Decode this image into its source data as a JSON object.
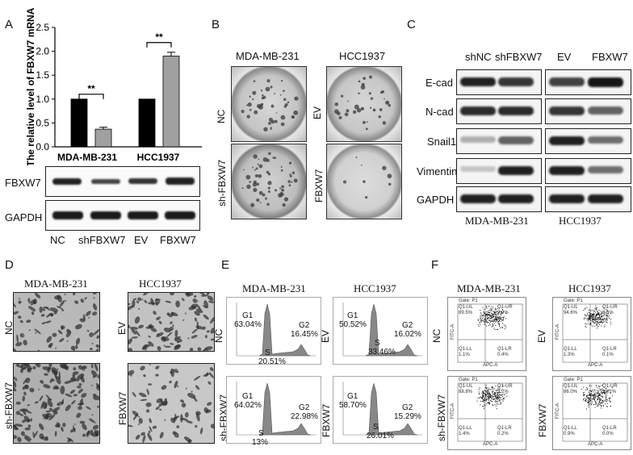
{
  "panels": {
    "A": "A",
    "B": "B",
    "C": "C",
    "D": "D",
    "E": "E",
    "F": "F"
  },
  "panelA": {
    "chart_data": {
      "type": "bar",
      "ylabel": "The relative level of FBXW7 mRNA",
      "ylim": [
        0,
        2.5
      ],
      "yticks": [
        "0.0",
        "0.5",
        "1.0",
        "1.5",
        "2.0",
        "2.5"
      ],
      "groups": [
        "MDA-MB-231",
        "HCC1937"
      ],
      "bars": [
        {
          "group": "MDA-MB-231",
          "color": "#000000",
          "value": 1.0,
          "error": 0
        },
        {
          "group": "MDA-MB-231",
          "color": "#a0a0a0",
          "value": 0.37,
          "error": 0.04
        },
        {
          "group": "HCC1937",
          "color": "#000000",
          "value": 1.0,
          "error": 0
        },
        {
          "group": "HCC1937",
          "color": "#a0a0a0",
          "value": 1.9,
          "error": 0.08
        }
      ],
      "significance": [
        "**",
        "**"
      ]
    },
    "blot_labels": [
      "FBXW7",
      "GAPDH"
    ],
    "lanes": [
      "NC",
      "shFBXW7",
      "EV",
      "FBXW7"
    ]
  },
  "panelB": {
    "cols": [
      "MDA-MB-231",
      "HCC1937"
    ],
    "left_rows": [
      "NC",
      "sh-FBXW7"
    ],
    "right_rows": [
      "EV",
      "FBXW7"
    ]
  },
  "panelC": {
    "left_lanes": [
      "shNC",
      "shFBXW7"
    ],
    "right_lanes": [
      "EV",
      "FBXW7"
    ],
    "proteins": [
      "E-cad",
      "N-cad",
      "Snail1",
      "Vimentin",
      "GAPDH"
    ],
    "cells": [
      "MDA-MB-231",
      "HCC1937"
    ]
  },
  "panelD": {
    "cols": [
      "MDA-MB-231",
      "HCC1937"
    ],
    "left_rows": [
      "NC",
      "sh-FBXW7"
    ],
    "right_rows": [
      "EV",
      "FBXW7"
    ]
  },
  "panelE": {
    "cols": [
      "MDA-MB-231",
      "HCC1937"
    ],
    "left_rows": [
      "NC",
      "sh-FBXW7"
    ],
    "right_rows": [
      "EV",
      "FBXW7"
    ],
    "cells": [
      {
        "g1": "G1",
        "g1v": "63.04%",
        "g2": "G2",
        "g2v": "16.45%",
        "s": "S",
        "sv": "20.51%"
      },
      {
        "g1": "G1",
        "g1v": "50.52%",
        "g2": "G2",
        "g2v": "16.02%",
        "s": "S",
        "sv": "33.46%"
      },
      {
        "g1": "G1",
        "g1v": "64.02%",
        "g2": "G2",
        "g2v": "22.98%",
        "s": "S",
        "sv": "13%"
      },
      {
        "g1": "G1",
        "g1v": "58.70%",
        "g2": "G2",
        "g2v": "15.29%",
        "s": "S",
        "sv": "26.01%"
      }
    ]
  },
  "panelF": {
    "cols": [
      "MDA-MB-231",
      "HCC1937"
    ],
    "left_rows": [
      "NC",
      "sh-FBXW7"
    ],
    "right_rows": [
      "EV",
      "FBXW7"
    ],
    "gate": "Gate: P1",
    "cells": [
      {
        "ul": "Q1-UL",
        "ulv": "89.5%",
        "ur": "Q1-UR",
        "urv": "9.0%",
        "ll": "Q1-LL",
        "llv": "1.1%",
        "lr": "Q1-LR",
        "lrv": "0.4%"
      },
      {
        "ul": "Q1-UL",
        "ulv": "94.6%",
        "ur": "Q1-UR",
        "urv": "3.6%",
        "ll": "Q1-LL",
        "llv": "1.3%",
        "lr": "Q1-LR",
        "lrv": "0.1%"
      },
      {
        "ul": "Q1-UL",
        "ulv": "88.8%",
        "ur": "Q1-UR",
        "urv": "3.2%",
        "ll": "Q1-LL",
        "llv": "1.4%",
        "lr": "Q1-LR",
        "lrv": "0.2%"
      },
      {
        "ul": "Q1-UL",
        "ulv": "86.0%",
        "ur": "Q1-UR",
        "urv": "13.1%",
        "ll": "Q1-LL",
        "llv": "0.9%",
        "lr": "Q1-LR",
        "lrv": "0.0%"
      }
    ],
    "xaxis": "APC-A",
    "yaxis": "FITC-A"
  }
}
